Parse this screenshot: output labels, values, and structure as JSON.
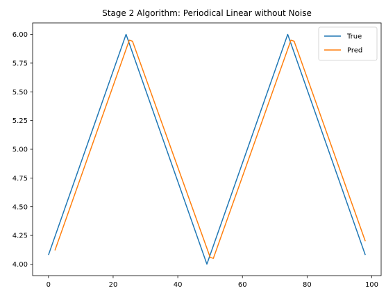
{
  "chart_data": {
    "type": "line",
    "title": "Stage 2 Algorithm: Periodical Linear without Noise",
    "xlabel": "",
    "ylabel": "",
    "xlim": [
      -4.9,
      102.9
    ],
    "ylim": [
      3.9,
      6.1
    ],
    "x_ticks": [
      0,
      20,
      40,
      60,
      80,
      100
    ],
    "x_tick_labels": [
      "0",
      "20",
      "40",
      "60",
      "80",
      "100"
    ],
    "y_ticks": [
      4.0,
      4.25,
      4.5,
      4.75,
      5.0,
      5.25,
      5.5,
      5.75,
      6.0
    ],
    "y_tick_labels": [
      "4.00",
      "4.25",
      "4.50",
      "4.75",
      "5.00",
      "5.25",
      "5.50",
      "5.75",
      "6.00"
    ],
    "grid": false,
    "legend_position": "top-right",
    "series": [
      {
        "name": "True",
        "color": "#1f77b4",
        "points": [
          [
            0,
            4.08
          ],
          [
            24,
            6.0
          ],
          [
            49,
            4.0
          ],
          [
            74,
            6.0
          ],
          [
            98,
            4.08
          ]
        ]
      },
      {
        "name": "Pred",
        "color": "#ff7f0e",
        "points": [
          [
            2,
            4.12
          ],
          [
            25,
            5.95
          ],
          [
            26,
            5.94
          ],
          [
            50,
            4.06
          ],
          [
            51,
            4.05
          ],
          [
            75,
            5.95
          ],
          [
            76,
            5.94
          ],
          [
            98,
            4.2
          ]
        ]
      }
    ]
  }
}
